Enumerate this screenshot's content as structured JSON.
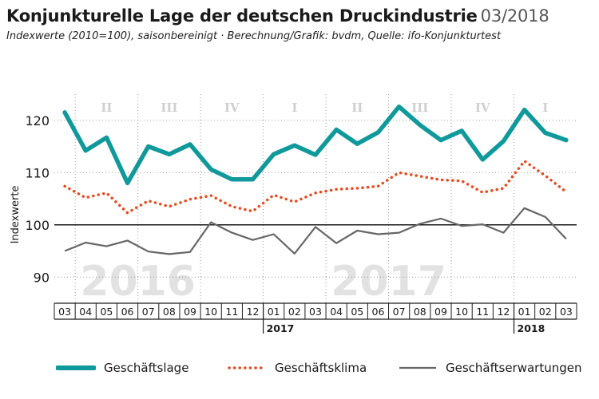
{
  "header": {
    "title": "Konjunkturelle Lage der deutschen Druckindustrie",
    "date": "03/2018",
    "subtitle": "Indexwerte (2010=100), saisonbereinigt · Berechnung/Grafik: bvdm, Quelle: ifo-Konjunkturtest"
  },
  "colors": {
    "geschaeftslage": "#10999b",
    "geschaeftsklima": "#e8491e",
    "geschaeftserwartungen": "#666666"
  },
  "chart_data": {
    "type": "line",
    "ylabel": "Indexwerte",
    "ylim": [
      85,
      125
    ],
    "yticks": [
      90,
      100,
      110,
      120
    ],
    "reference_line": 100,
    "x": [
      "03",
      "04",
      "05",
      "06",
      "07",
      "08",
      "09",
      "10",
      "11",
      "12",
      "01",
      "02",
      "03",
      "04",
      "05",
      "06",
      "07",
      "08",
      "09",
      "10",
      "11",
      "12",
      "01",
      "02",
      "03"
    ],
    "years": [
      {
        "label": "2017",
        "start_index": 10
      },
      {
        "label": "2018",
        "start_index": 22
      }
    ],
    "quarters": [
      {
        "label": "II",
        "from": 1,
        "to": 3
      },
      {
        "label": "III",
        "from": 4,
        "to": 6
      },
      {
        "label": "IV",
        "from": 7,
        "to": 9
      },
      {
        "label": "I",
        "from": 10,
        "to": 12
      },
      {
        "label": "II",
        "from": 13,
        "to": 15
      },
      {
        "label": "III",
        "from": 16,
        "to": 18
      },
      {
        "label": "IV",
        "from": 19,
        "to": 21
      },
      {
        "label": "I",
        "from": 22,
        "to": 24
      }
    ],
    "watermarks": [
      {
        "label": "2016",
        "center_index": 3.5
      },
      {
        "label": "2017",
        "center_index": 15.5
      }
    ],
    "series": [
      {
        "name": "Geschäftslage",
        "style": "thick",
        "values": [
          121.5,
          114.2,
          116.7,
          108.0,
          115.0,
          113.5,
          115.4,
          110.6,
          108.7,
          108.7,
          113.5,
          115.2,
          113.4,
          118.2,
          115.5,
          117.7,
          122.6,
          119.1,
          116.2,
          118.0,
          112.5,
          116.0,
          122.0,
          117.6,
          116.2
        ]
      },
      {
        "name": "Geschäftsklima",
        "style": "dotted",
        "values": [
          107.4,
          105.2,
          106.1,
          102.3,
          104.6,
          103.5,
          104.9,
          105.6,
          103.5,
          102.6,
          105.7,
          104.4,
          106.1,
          106.8,
          107.0,
          107.4,
          110.0,
          109.3,
          108.6,
          108.4,
          106.2,
          107.0,
          112.2,
          109.4,
          106.3
        ]
      },
      {
        "name": "Geschäftserwartungen",
        "style": "thin",
        "values": [
          95.0,
          96.6,
          95.9,
          97.0,
          94.9,
          94.4,
          94.8,
          100.5,
          98.5,
          97.1,
          98.2,
          94.5,
          99.6,
          96.5,
          98.9,
          98.2,
          98.5,
          100.2,
          101.2,
          99.8,
          100.1,
          98.5,
          103.2,
          101.5,
          97.3
        ]
      }
    ]
  }
}
